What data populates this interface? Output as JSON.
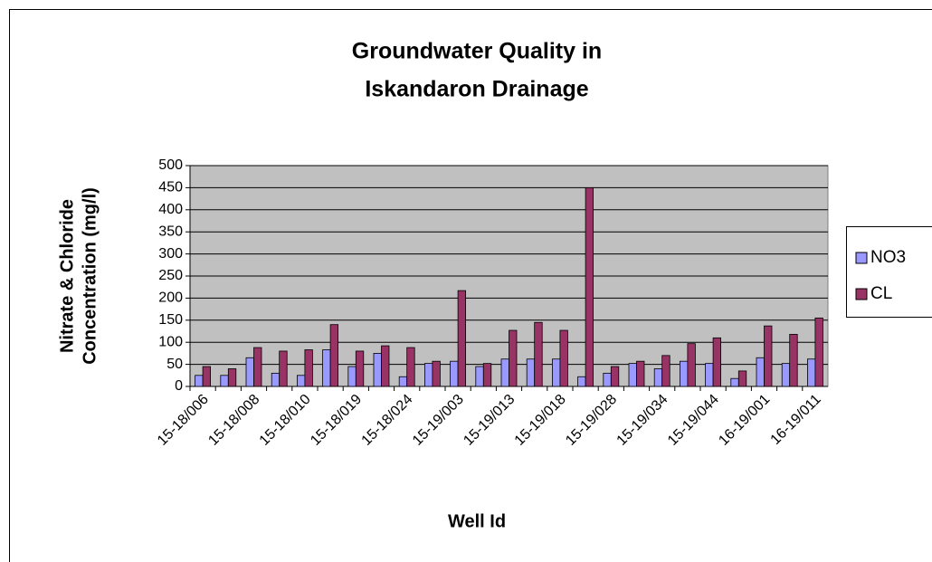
{
  "chart_data": {
    "type": "bar",
    "title": [
      "Groundwater Quality in",
      "Iskandaron Drainage"
    ],
    "x_label": "Well Id",
    "y_label": [
      "Nitrate & Chloride",
      "Concentration (mg/l)"
    ],
    "categories": [
      "15-18/006",
      null,
      "15-18/008",
      null,
      "15-18/010",
      null,
      "15-18/019",
      null,
      "15-18/024",
      null,
      "15-19/003",
      null,
      "15-19/013",
      null,
      "15-19/018",
      null,
      "15-19/028",
      null,
      "15-19/034",
      null,
      "15-19/044",
      null,
      "16-19/001",
      null,
      "16-19/011"
    ],
    "series": [
      {
        "name": "NO3",
        "color": "#9999ff",
        "values": [
          25,
          25,
          65,
          30,
          25,
          83,
          45,
          75,
          22,
          52,
          57,
          45,
          62,
          62,
          62,
          22,
          30,
          52,
          40,
          57,
          52,
          18,
          65,
          52,
          62
        ]
      },
      {
        "name": "CL",
        "color": "#993366",
        "values": [
          45,
          40,
          88,
          80,
          83,
          140,
          80,
          92,
          88,
          57,
          217,
          52,
          127,
          145,
          127,
          450,
          45,
          57,
          70,
          97,
          110,
          35,
          137,
          118,
          155
        ]
      }
    ],
    "ylim": [
      0,
      500
    ],
    "yticks": [
      0,
      50,
      100,
      150,
      200,
      250,
      300,
      350,
      400,
      450,
      500
    ],
    "grid": true,
    "legend": "right",
    "plot_background": "#c0c0c0"
  }
}
